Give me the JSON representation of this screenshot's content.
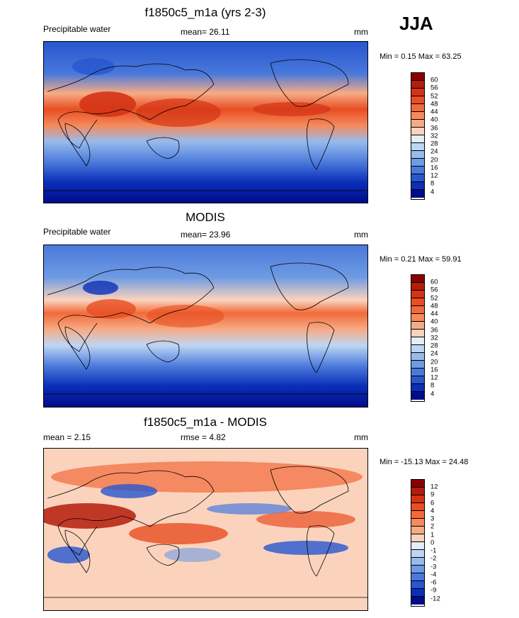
{
  "season": "JJA",
  "panels": [
    {
      "title": "f1850c5_m1a (yrs 2-3)",
      "left_label": "Precipitable water",
      "center_label": "mean=  26.11",
      "units": "mm",
      "minmax": "Min =   0.15 Max =  63.25",
      "colorbar": {
        "labels": [
          "60",
          "56",
          "52",
          "48",
          "44",
          "40",
          "36",
          "32",
          "28",
          "24",
          "20",
          "16",
          "12",
          "8",
          "4"
        ],
        "colors": [
          "#8b0000",
          "#b41c0b",
          "#d43415",
          "#e84e22",
          "#f26a3a",
          "#f58a5c",
          "#f7ab85",
          "#fbd3bd",
          "#e3eef9",
          "#bed6f3",
          "#97bbec",
          "#6f9be3",
          "#4a79db",
          "#2756cf",
          "#0b2fb8",
          "#000c8a"
        ]
      }
    },
    {
      "title": "MODIS",
      "left_label": "Precipitable water",
      "center_label": "mean=  23.96",
      "units": "mm",
      "minmax": "Min =   0.21 Max =  59.91",
      "colorbar": {
        "labels": [
          "60",
          "56",
          "52",
          "48",
          "44",
          "40",
          "36",
          "32",
          "28",
          "24",
          "20",
          "16",
          "12",
          "8",
          "4"
        ],
        "colors": [
          "#8b0000",
          "#b41c0b",
          "#d43415",
          "#e84e22",
          "#f26a3a",
          "#f58a5c",
          "#f7ab85",
          "#fbd3bd",
          "#e3eef9",
          "#bed6f3",
          "#97bbec",
          "#6f9be3",
          "#4a79db",
          "#2756cf",
          "#0b2fb8",
          "#000c8a"
        ]
      }
    },
    {
      "title": "f1850c5_m1a - MODIS",
      "left_label": "mean =   2.15",
      "center_label": "rmse =   4.82",
      "units": "mm",
      "minmax": "Min = -15.13 Max =  24.48",
      "colorbar": {
        "labels": [
          "12",
          "9",
          "6",
          "4",
          "3",
          "2",
          "1",
          "0",
          "-1",
          "-2",
          "-3",
          "-4",
          "-6",
          "-9",
          "-12"
        ],
        "colors": [
          "#8b0000",
          "#b41c0b",
          "#d43415",
          "#e84e22",
          "#f26a3a",
          "#f58a5c",
          "#f7ab85",
          "#fbd3bd",
          "#e3eef9",
          "#bed6f3",
          "#97bbec",
          "#6f9be3",
          "#4a79db",
          "#2756cf",
          "#0b2fb8",
          "#000c8a"
        ]
      }
    }
  ]
}
